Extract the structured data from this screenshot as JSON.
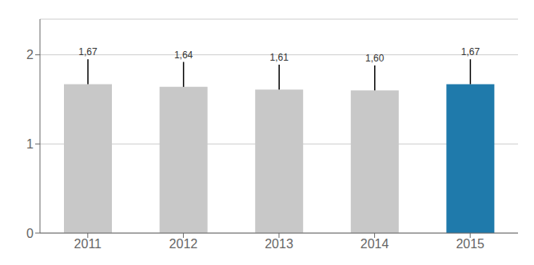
{
  "chart_data": {
    "type": "bar",
    "categories": [
      "2011",
      "2012",
      "2013",
      "2014",
      "2015"
    ],
    "values": [
      1.67,
      1.64,
      1.61,
      1.6,
      1.67
    ],
    "value_labels": [
      "1,67",
      "1,64",
      "1,61",
      "1,60",
      "1,67"
    ],
    "data_labels": true,
    "error_top": [
      0.28,
      0.28,
      0.28,
      0.28,
      0.28
    ],
    "colors": [
      "#c8c8c8",
      "#c8c8c8",
      "#c8c8c8",
      "#c8c8c8",
      "#1f7aab"
    ],
    "ylim": [
      0,
      2.4
    ],
    "yticks": [
      0,
      1,
      2
    ],
    "grid": true
  }
}
